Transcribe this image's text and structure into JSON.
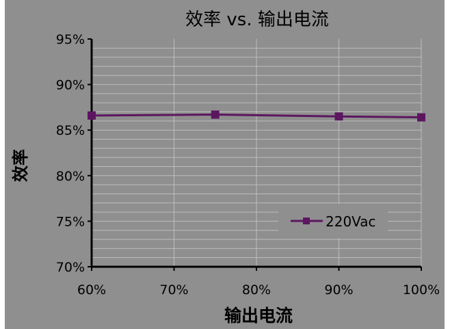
{
  "chart_data": {
    "type": "line",
    "title": "效率 vs. 输出电流",
    "xlabel": "输出电流",
    "ylabel": "效率",
    "x_ticks": [
      "60%",
      "70%",
      "80%",
      "90%",
      "100%"
    ],
    "y_ticks": [
      "70%",
      "75%",
      "80%",
      "85%",
      "90%",
      "95%"
    ],
    "xlim": [
      60,
      100
    ],
    "ylim": [
      70,
      95
    ],
    "grid": true,
    "legend_position": "bottom-right",
    "series": [
      {
        "name": "220Vac",
        "color": "#5c1660",
        "marker": "square",
        "x": [
          60,
          75,
          90,
          100
        ],
        "y": [
          86.6,
          86.7,
          86.5,
          86.4
        ]
      }
    ]
  },
  "colors": {
    "plot_bg": "#8f8f8f",
    "grid": "#bdbdbd",
    "axis": "#000000",
    "text": "#000000"
  }
}
